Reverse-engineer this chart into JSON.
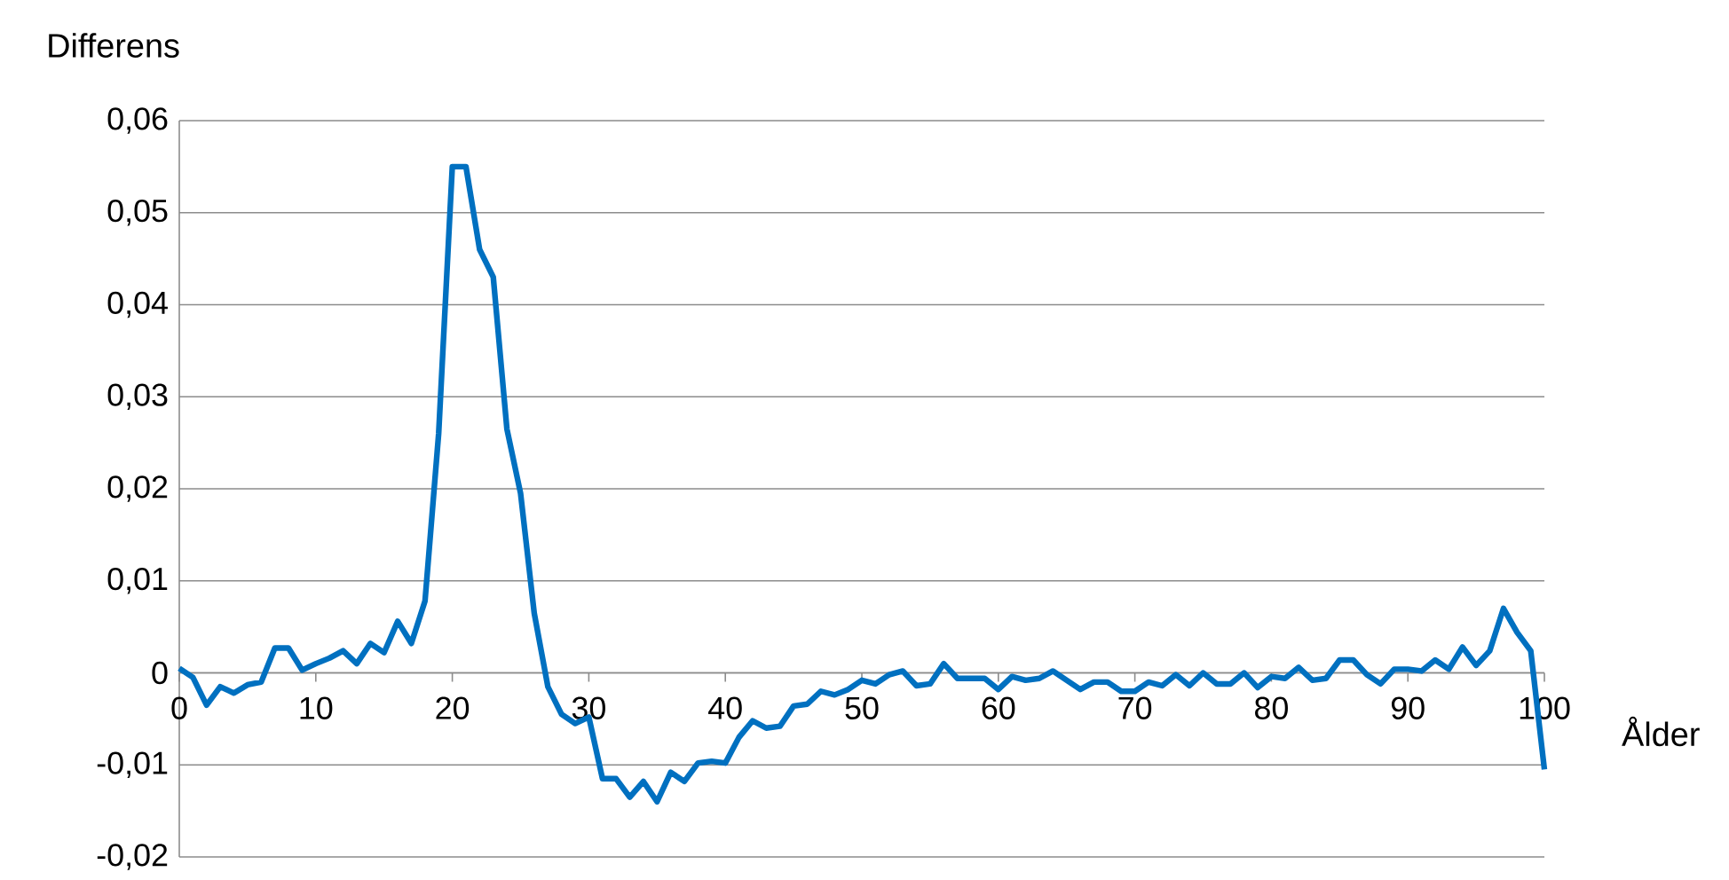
{
  "chart_data": {
    "type": "line",
    "xlabel": "Ålder",
    "ylabel": "Differens",
    "x": [
      0,
      1,
      2,
      3,
      4,
      5,
      6,
      7,
      8,
      9,
      10,
      11,
      12,
      13,
      14,
      15,
      16,
      17,
      18,
      19,
      20,
      21,
      22,
      23,
      24,
      25,
      26,
      27,
      28,
      29,
      30,
      31,
      32,
      33,
      34,
      35,
      36,
      37,
      38,
      39,
      40,
      41,
      42,
      43,
      44,
      45,
      46,
      47,
      48,
      49,
      50,
      51,
      52,
      53,
      54,
      55,
      56,
      57,
      58,
      59,
      60,
      61,
      62,
      63,
      64,
      65,
      66,
      67,
      68,
      69,
      70,
      71,
      72,
      73,
      74,
      75,
      76,
      77,
      78,
      79,
      80,
      81,
      82,
      83,
      84,
      85,
      86,
      87,
      88,
      89,
      90,
      91,
      92,
      93,
      94,
      95,
      96,
      97,
      98,
      99,
      100
    ],
    "series": [
      {
        "color": "#0070c0",
        "values": [
          0.0005,
          -0.0005,
          -0.0035,
          -0.0015,
          -0.0022,
          -0.0013,
          -0.001,
          0.0027,
          0.0027,
          0.0003,
          0.001,
          0.0016,
          0.0024,
          0.001,
          0.0032,
          0.0022,
          0.0056,
          0.0032,
          0.0078,
          0.026,
          0.055,
          0.055,
          0.046,
          0.043,
          0.0265,
          0.0195,
          0.0065,
          -0.0015,
          -0.0045,
          -0.0055,
          -0.0048,
          -0.0115,
          -0.0115,
          -0.0135,
          -0.0118,
          -0.014,
          -0.0108,
          -0.0118,
          -0.0098,
          -0.0096,
          -0.0098,
          -0.007,
          -0.0052,
          -0.006,
          -0.0058,
          -0.0036,
          -0.0034,
          -0.002,
          -0.0024,
          -0.0018,
          -0.0008,
          -0.0012,
          -0.0002,
          0.0002,
          -0.0014,
          -0.0012,
          0.001,
          -0.0006,
          -0.0006,
          -0.0006,
          -0.0018,
          -0.0004,
          -0.0008,
          -0.0006,
          0.0002,
          -0.0008,
          -0.0018,
          -0.001,
          -0.001,
          -0.002,
          -0.002,
          -0.001,
          -0.0014,
          -0.0002,
          -0.0014,
          0,
          -0.0012,
          -0.0012,
          0,
          -0.0016,
          -0.0004,
          -0.0006,
          0.0006,
          -0.0008,
          -0.0006,
          0.0014,
          0.0014,
          -0.0002,
          -0.0012,
          0.0004,
          0.0004,
          0.0002,
          0.0014,
          0.0004,
          0.0028,
          0.0008,
          0.0024,
          0.007,
          0.0044,
          0.0024,
          -0.0105
        ]
      }
    ],
    "xlim": [
      0,
      100
    ],
    "xticks": [
      0,
      10,
      20,
      30,
      40,
      50,
      60,
      70,
      80,
      90,
      100
    ],
    "ylim": [
      -0.02,
      0.06
    ],
    "yticks": [
      {
        "value": -0.02,
        "label": "-0,02"
      },
      {
        "value": -0.01,
        "label": "-0,01"
      },
      0,
      {
        "value": 0.01,
        "label": "0,01"
      },
      {
        "value": 0.02,
        "label": "0,02"
      },
      {
        "value": 0.03,
        "label": "0,03"
      },
      {
        "value": 0.04,
        "label": "0,04"
      },
      {
        "value": 0.05,
        "label": "0,05"
      },
      {
        "value": 0.06,
        "label": "0,06"
      }
    ],
    "grid": "y",
    "line_style": "solid"
  }
}
